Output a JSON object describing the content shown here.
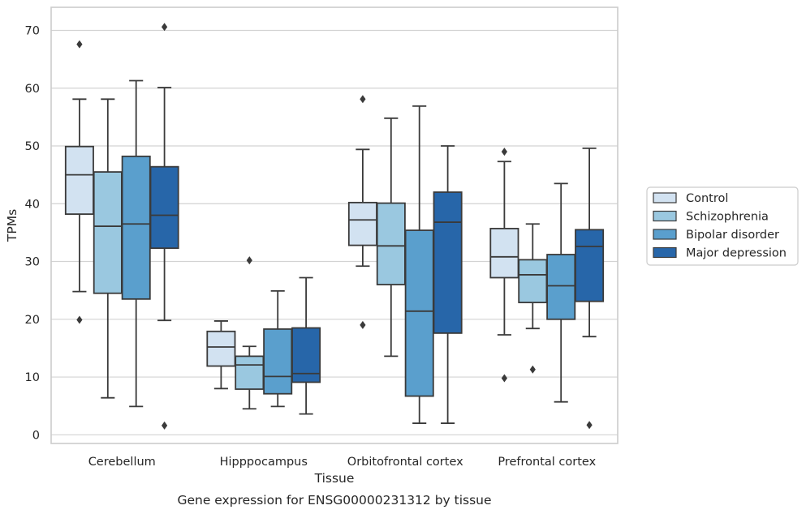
{
  "chart_data": {
    "type": "box",
    "caption": "Gene expression for ENSG00000231312 by tissue",
    "xlabel": "Tissue",
    "ylabel": "TPMs",
    "ylim": [
      -1.5,
      74
    ],
    "yticks": [
      0,
      10,
      20,
      30,
      40,
      50,
      60,
      70
    ],
    "grid": "horizontal",
    "legend_position": "right",
    "categories": [
      "Cerebellum",
      "Hipppocampus",
      "Orbitofrontal cortex",
      "Prefrontal cortex"
    ],
    "series": [
      {
        "name": "Control",
        "color": "#d2e2f1",
        "boxes": [
          {
            "whislo": 24.8,
            "q1": 38.2,
            "med": 45.0,
            "q3": 49.9,
            "whishi": 58.1,
            "fliers": [
              67.6,
              19.9
            ]
          },
          {
            "whislo": 8.0,
            "q1": 11.9,
            "med": 15.2,
            "q3": 17.9,
            "whishi": 19.7,
            "fliers": []
          },
          {
            "whislo": 29.2,
            "q1": 32.8,
            "med": 37.2,
            "q3": 40.2,
            "whishi": 49.4,
            "fliers": [
              58.1,
              19.0
            ]
          },
          {
            "whislo": 17.3,
            "q1": 27.2,
            "med": 30.8,
            "q3": 35.7,
            "whishi": 47.3,
            "fliers": [
              49.0,
              9.8
            ]
          }
        ]
      },
      {
        "name": "Schizophrenia",
        "color": "#9ac8e0",
        "boxes": [
          {
            "whislo": 6.4,
            "q1": 24.5,
            "med": 36.1,
            "q3": 45.5,
            "whishi": 58.1,
            "fliers": []
          },
          {
            "whislo": 4.5,
            "q1": 7.9,
            "med": 12.1,
            "q3": 13.6,
            "whishi": 15.3,
            "fliers": [
              30.2
            ]
          },
          {
            "whislo": 13.6,
            "q1": 26.0,
            "med": 32.7,
            "q3": 40.1,
            "whishi": 54.8,
            "fliers": []
          },
          {
            "whislo": 18.4,
            "q1": 22.9,
            "med": 27.7,
            "q3": 30.3,
            "whishi": 36.5,
            "fliers": [
              11.3
            ]
          }
        ]
      },
      {
        "name": "Bipolar disorder",
        "color": "#5a9fcd",
        "boxes": [
          {
            "whislo": 4.9,
            "q1": 23.5,
            "med": 36.5,
            "q3": 48.2,
            "whishi": 61.3,
            "fliers": []
          },
          {
            "whislo": 4.9,
            "q1": 7.1,
            "med": 10.1,
            "q3": 18.3,
            "whishi": 24.9,
            "fliers": []
          },
          {
            "whislo": 2.0,
            "q1": 6.7,
            "med": 21.4,
            "q3": 35.4,
            "whishi": 56.9,
            "fliers": []
          },
          {
            "whislo": 5.7,
            "q1": 20.0,
            "med": 25.8,
            "q3": 31.2,
            "whishi": 43.5,
            "fliers": []
          }
        ]
      },
      {
        "name": "Major depression",
        "color": "#2766a9",
        "boxes": [
          {
            "whislo": 19.8,
            "q1": 32.3,
            "med": 38.0,
            "q3": 46.4,
            "whishi": 60.1,
            "fliers": [
              70.6,
              1.6
            ]
          },
          {
            "whislo": 3.6,
            "q1": 9.1,
            "med": 10.6,
            "q3": 18.5,
            "whishi": 27.2,
            "fliers": []
          },
          {
            "whislo": 2.0,
            "q1": 17.6,
            "med": 36.8,
            "q3": 42.0,
            "whishi": 50.0,
            "fliers": []
          },
          {
            "whislo": 17.0,
            "q1": 23.1,
            "med": 32.6,
            "q3": 35.5,
            "whishi": 49.6,
            "fliers": [
              1.7
            ]
          }
        ]
      }
    ]
  }
}
